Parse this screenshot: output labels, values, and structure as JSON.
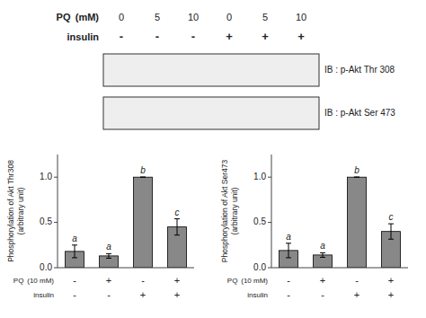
{
  "chart_data": [
    {
      "type": "blot",
      "rows": [
        {
          "label": "PQ  (mM)",
          "lanes": [
            "0",
            "5",
            "10",
            "0",
            "5",
            "10"
          ]
        },
        {
          "label": "insulin",
          "lanes": [
            "-",
            "-",
            "-",
            "+",
            "+",
            "+"
          ]
        }
      ],
      "blots": [
        "IB : p-Akt Thr 308",
        "IB : p-Akt Ser 473"
      ]
    },
    {
      "type": "bar",
      "ylabel": [
        "Phosphorylation of Akt Thr308",
        "(arbitrary unit)"
      ],
      "categories": [
        "-",
        "+",
        "-",
        "+"
      ],
      "xlabel": "PQ  (10 mM)",
      "categories2": [
        "-",
        "-",
        "+",
        "+"
      ],
      "xlabel2": "insulin",
      "values": [
        0.18,
        0.13,
        1.0,
        0.45
      ],
      "errors": [
        0.07,
        0.025,
        0.0,
        0.09
      ],
      "annotations": [
        "a",
        "a",
        "b",
        "c"
      ],
      "color": "#888888",
      "ylim": [
        0,
        1.25
      ],
      "yticks": [
        {
          "value": 0,
          "label": "0.0"
        },
        0.5,
        {
          "value": 1.0,
          "label": "1.0"
        }
      ]
    },
    {
      "type": "bar",
      "ylabel": [
        "Phosphorylation of Akt Ser473",
        "(arbitrary unit)"
      ],
      "categories": [
        "-",
        "+",
        "-",
        "+"
      ],
      "xlabel": "PQ  (10 mM)",
      "categories2": [
        "-",
        "-",
        "+",
        "+"
      ],
      "xlabel2": "insulin",
      "values": [
        0.19,
        0.14,
        1.0,
        0.4
      ],
      "errors": [
        0.08,
        0.025,
        0.0,
        0.085
      ],
      "annotations": [
        "a",
        "a",
        "b",
        "c"
      ],
      "color": "#888888",
      "ylim": [
        0,
        1.25
      ],
      "yticks": [
        {
          "value": 0,
          "label": "0.0"
        },
        0.5,
        {
          "value": 1.0,
          "label": "1.0"
        }
      ]
    }
  ]
}
